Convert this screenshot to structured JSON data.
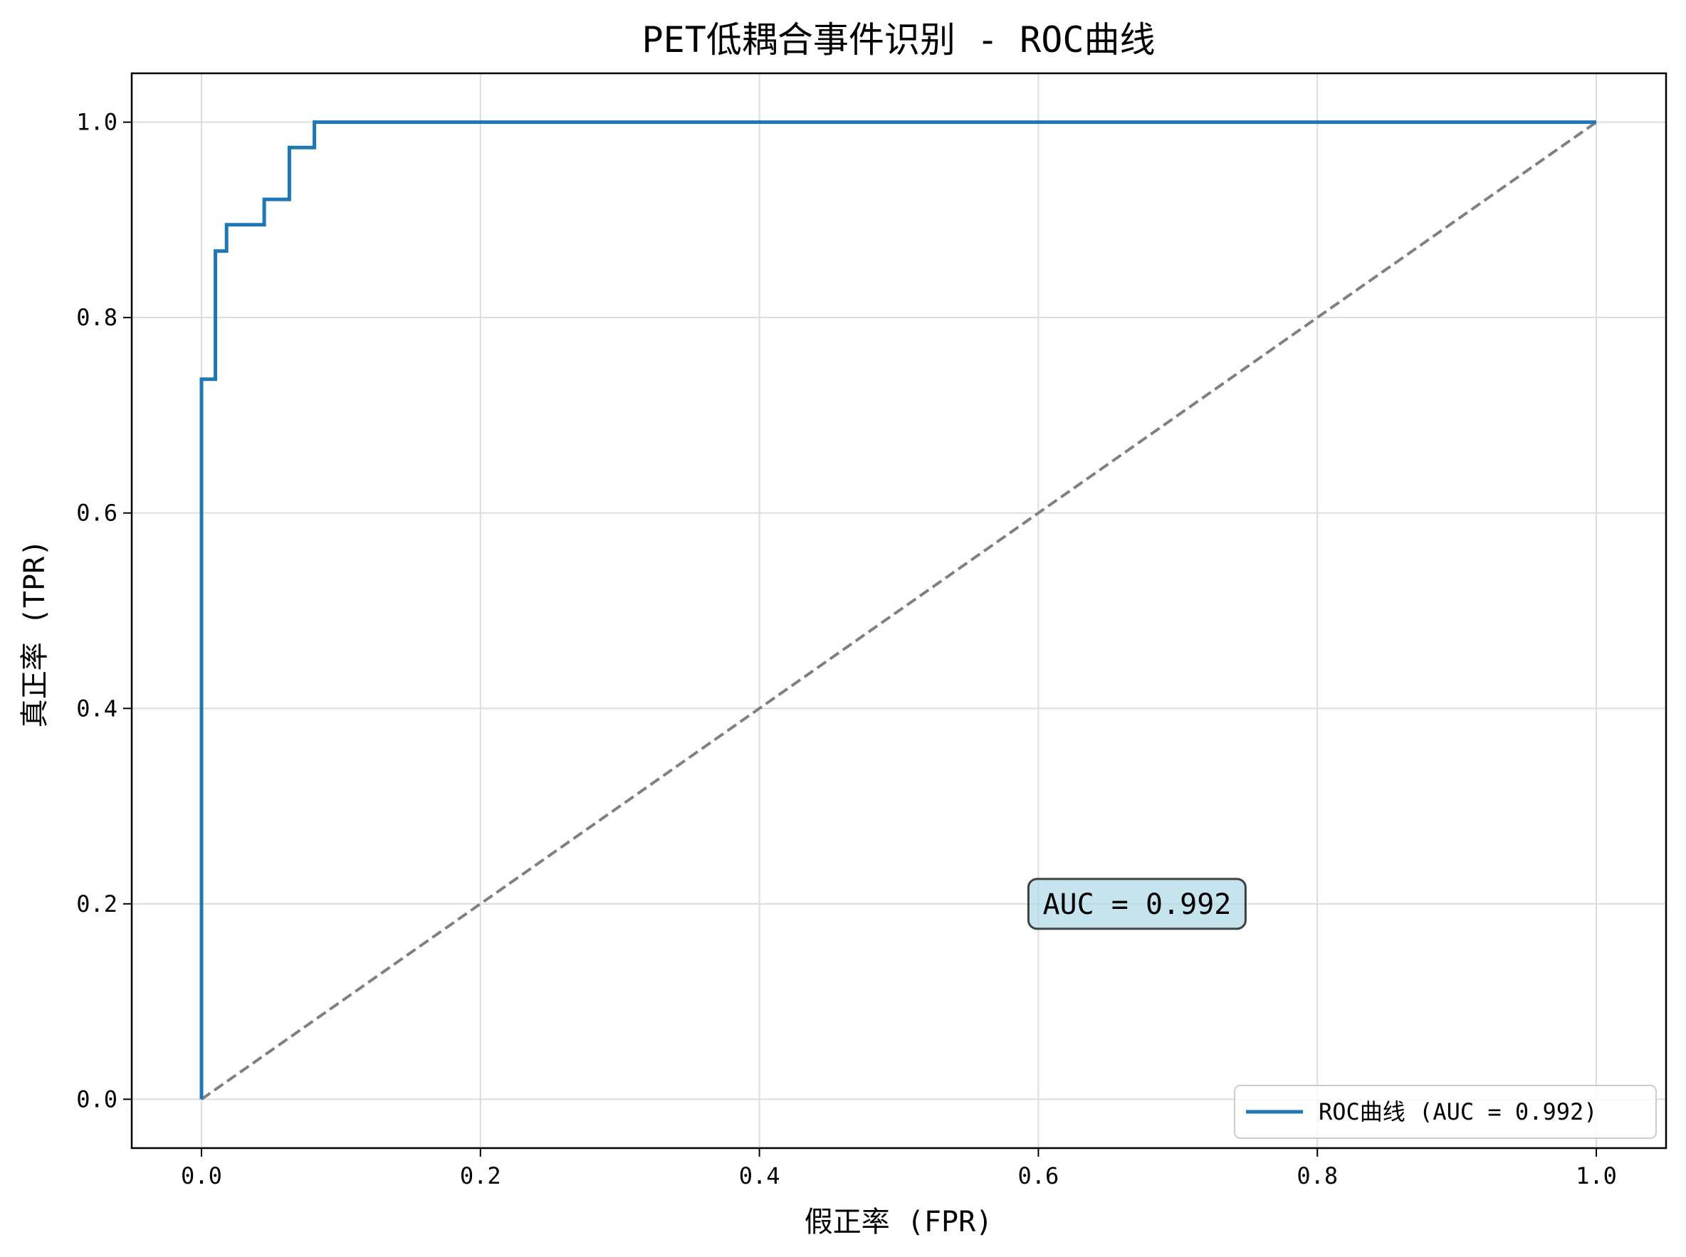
{
  "chart_data": {
    "type": "line",
    "title": "PET低耦合事件识别 - ROC曲线",
    "xlabel": "假正率 (FPR)",
    "ylabel": "真正率 (TPR)",
    "xlim": [
      -0.05,
      1.05
    ],
    "ylim": [
      -0.05,
      1.05
    ],
    "xticks": [
      "0.0",
      "0.2",
      "0.4",
      "0.6",
      "0.8",
      "1.0"
    ],
    "yticks": [
      "0.0",
      "0.2",
      "0.4",
      "0.6",
      "0.8",
      "1.0"
    ],
    "grid": true,
    "legend_position": "lower-right",
    "series": [
      {
        "name": "ROC曲线 (AUC = 0.992)",
        "color": "#1f77b4",
        "x": [
          0.0,
          0.0,
          0.01,
          0.01,
          0.018,
          0.018,
          0.045,
          0.045,
          0.063,
          0.063,
          0.081,
          0.081,
          1.0
        ],
        "y": [
          0.0,
          0.737,
          0.737,
          0.868,
          0.868,
          0.895,
          0.895,
          0.921,
          0.921,
          0.974,
          0.974,
          1.0,
          1.0
        ]
      },
      {
        "style": "dashed",
        "color": "#808080",
        "x": [
          0.0,
          1.0
        ],
        "y": [
          0.0,
          1.0
        ]
      }
    ],
    "annotation": {
      "text": "AUC = 0.992",
      "x": 0.6,
      "y": 0.2,
      "box_color": "#add8e6"
    }
  }
}
